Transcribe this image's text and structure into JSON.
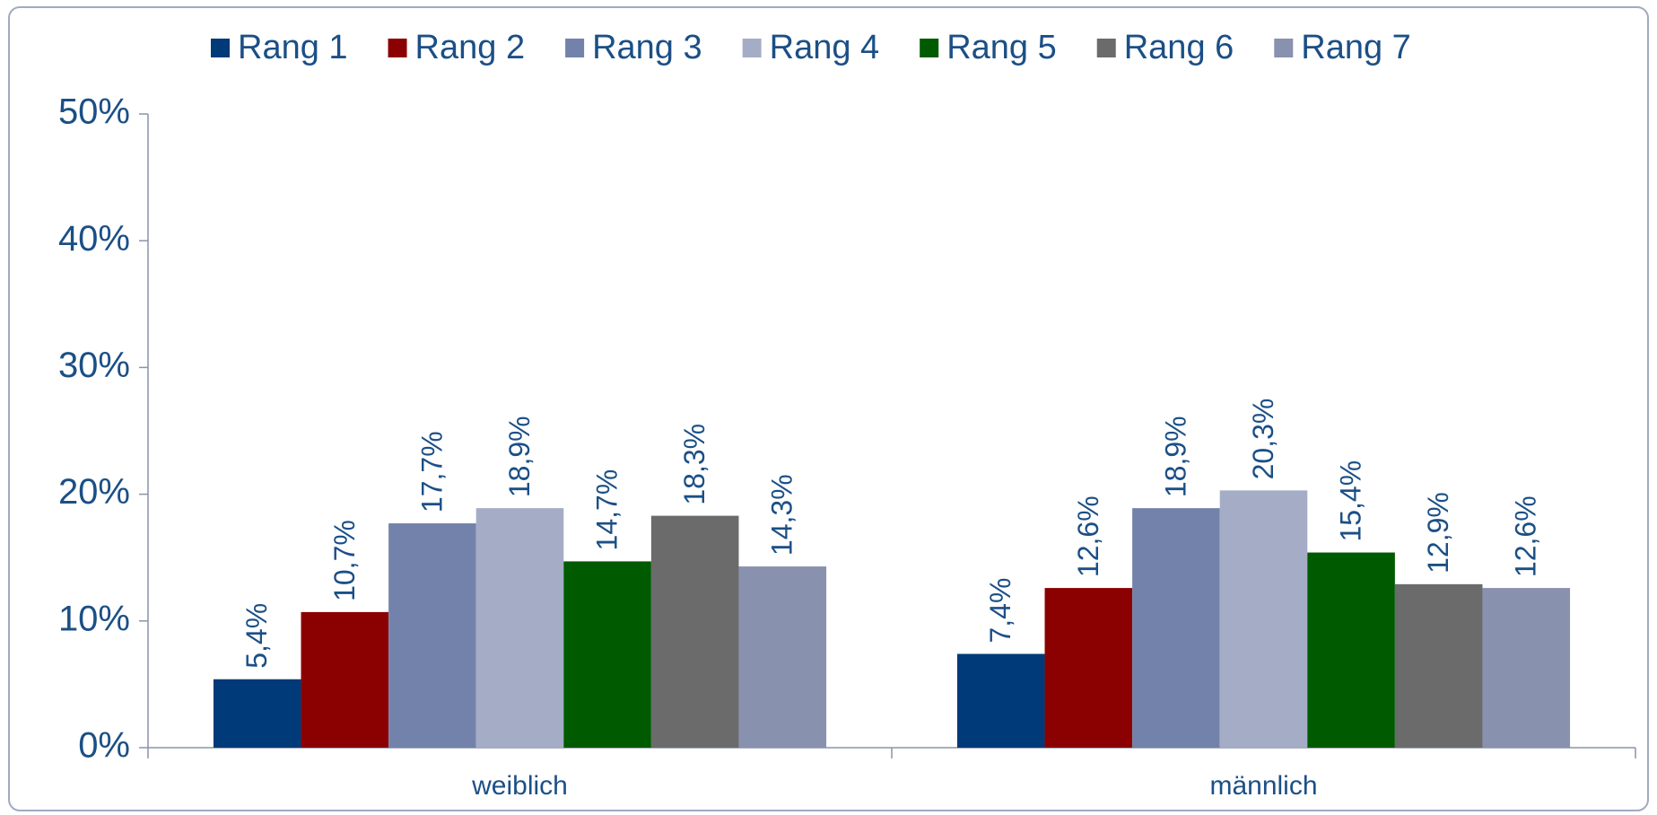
{
  "chart_data": {
    "type": "bar",
    "categories": [
      "weiblich",
      "männlich"
    ],
    "series": [
      {
        "name": "Rang 1",
        "color": "#003a78",
        "values": [
          5.4,
          7.4
        ],
        "value_labels": [
          "5,4%",
          "7,4%"
        ]
      },
      {
        "name": "Rang 2",
        "color": "#8b0000",
        "values": [
          10.7,
          12.6
        ],
        "value_labels": [
          "10,7%",
          "12,6%"
        ]
      },
      {
        "name": "Rang 3",
        "color": "#7382aa",
        "values": [
          17.7,
          18.9
        ],
        "value_labels": [
          "17,7%",
          "18,9%"
        ]
      },
      {
        "name": "Rang 4",
        "color": "#a5adc6",
        "values": [
          18.9,
          20.3
        ],
        "value_labels": [
          "18,9%",
          "20,3%"
        ]
      },
      {
        "name": "Rang 5",
        "color": "#005a00",
        "values": [
          14.7,
          15.4
        ],
        "value_labels": [
          "14,7%",
          "15,4%"
        ]
      },
      {
        "name": "Rang 6",
        "color": "#6b6b6b",
        "values": [
          18.3,
          12.9
        ],
        "value_labels": [
          "18,3%",
          "12,9%"
        ]
      },
      {
        "name": "Rang 7",
        "color": "#8891ae",
        "values": [
          14.3,
          12.6
        ],
        "value_labels": [
          "14,3%",
          "12,6%"
        ]
      }
    ],
    "ylim": [
      0,
      50
    ],
    "yticks": [
      {
        "value": 0,
        "label": "0%"
      },
      {
        "value": 10,
        "label": "10%"
      },
      {
        "value": 20,
        "label": "20%"
      },
      {
        "value": 30,
        "label": "30%"
      },
      {
        "value": 40,
        "label": "40%"
      },
      {
        "value": 50,
        "label": "50%"
      }
    ],
    "legend": "top"
  }
}
